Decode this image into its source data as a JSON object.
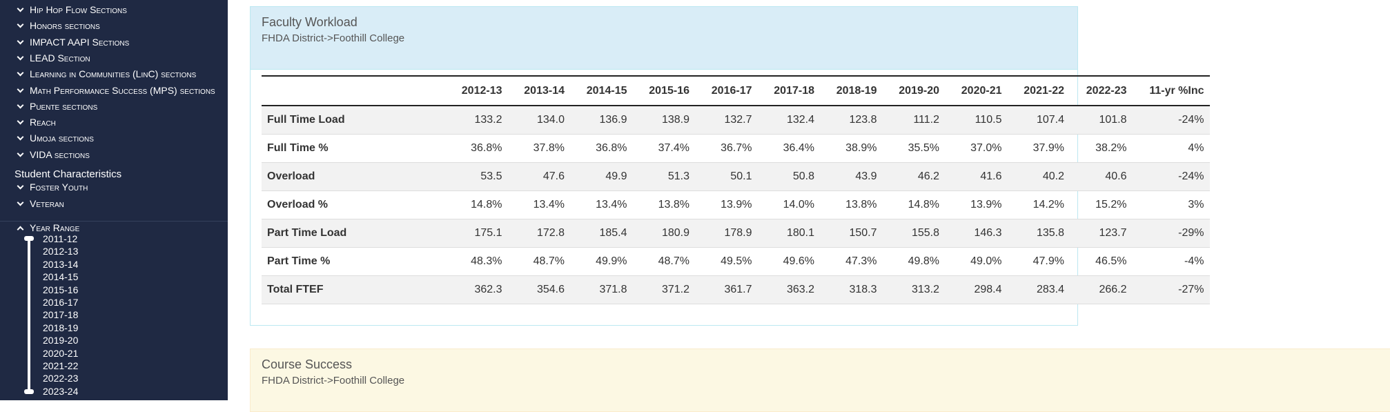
{
  "sidebar": {
    "program_items": [
      "Hip Hop Flow Sections",
      "Honors sections",
      "IMPACT AAPI Sections",
      "LEAD Section",
      "Learning in Communities (LinC) sections",
      "Math Performance Success (MPS) sections",
      "Puente sections",
      "Reach",
      "Umoja sections",
      "VIDA sections"
    ],
    "student_heading": "Student Characteristics",
    "student_items": [
      "Foster Youth",
      "Veteran"
    ],
    "year_range": {
      "label": "Year Range",
      "years": [
        "2011-12",
        "2012-13",
        "2013-14",
        "2014-15",
        "2015-16",
        "2016-17",
        "2017-18",
        "2018-19",
        "2019-20",
        "2020-21",
        "2021-22",
        "2022-23",
        "2023-24"
      ]
    }
  },
  "panels": [
    {
      "title": "Faculty Workload",
      "subtitle": "FHDA District->Foothill College",
      "table": {
        "header": [
          "",
          "2012-13",
          "2013-14",
          "2014-15",
          "2015-16",
          "2016-17",
          "2017-18",
          "2018-19",
          "2019-20",
          "2020-21",
          "2021-22",
          "2022-23",
          "11-yr %Inc"
        ],
        "rows": [
          [
            "Full Time Load",
            "133.2",
            "134.0",
            "136.9",
            "138.9",
            "132.7",
            "132.4",
            "123.8",
            "111.2",
            "110.5",
            "107.4",
            "101.8",
            "-24%"
          ],
          [
            "Full Time %",
            "36.8%",
            "37.8%",
            "36.8%",
            "37.4%",
            "36.7%",
            "36.4%",
            "38.9%",
            "35.5%",
            "37.0%",
            "37.9%",
            "38.2%",
            "4%"
          ],
          [
            "Overload",
            "53.5",
            "47.6",
            "49.9",
            "51.3",
            "50.1",
            "50.8",
            "43.9",
            "46.2",
            "41.6",
            "40.2",
            "40.6",
            "-24%"
          ],
          [
            "Overload %",
            "14.8%",
            "13.4%",
            "13.4%",
            "13.8%",
            "13.9%",
            "14.0%",
            "13.8%",
            "14.8%",
            "13.9%",
            "14.2%",
            "15.2%",
            "3%"
          ],
          [
            "Part Time Load",
            "175.1",
            "172.8",
            "185.4",
            "180.9",
            "178.9",
            "180.1",
            "150.7",
            "155.8",
            "146.3",
            "135.8",
            "123.7",
            "-29%"
          ],
          [
            "Part Time %",
            "48.3%",
            "48.7%",
            "49.9%",
            "48.7%",
            "49.5%",
            "49.6%",
            "47.3%",
            "49.8%",
            "49.0%",
            "47.9%",
            "46.5%",
            "-4%"
          ],
          [
            "Total FTEF",
            "362.3",
            "354.6",
            "371.8",
            "371.2",
            "361.7",
            "363.2",
            "318.3",
            "313.2",
            "298.4",
            "283.4",
            "266.2",
            "-27%"
          ]
        ]
      }
    },
    {
      "title": "Course Success",
      "subtitle": "FHDA District->Foothill College"
    }
  ]
}
